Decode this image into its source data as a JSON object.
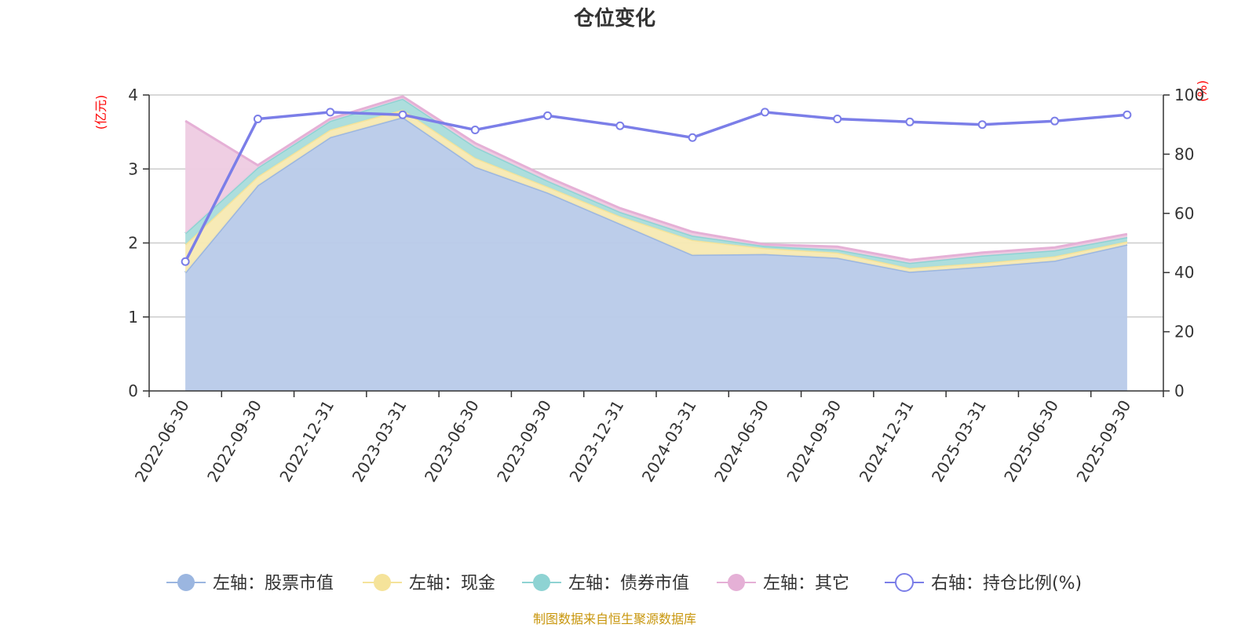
{
  "chart_data": {
    "type": "area",
    "title": "仓位变化",
    "left_axis_unit": "(亿元)",
    "right_axis_unit": "(%)",
    "ylim_left": [
      0,
      4
    ],
    "yticks_left": [
      "0",
      "1",
      "2",
      "3",
      "4"
    ],
    "ylim_right": [
      0,
      100
    ],
    "yticks_right": [
      "0",
      "20",
      "40",
      "60",
      "80",
      "100"
    ],
    "categories": [
      "2022-06-30",
      "2022-09-30",
      "2022-12-31",
      "2023-03-31",
      "2023-06-30",
      "2023-09-30",
      "2023-12-31",
      "2024-03-31",
      "2024-06-30",
      "2024-09-30",
      "2024-12-31",
      "2025-03-31",
      "2025-06-30",
      "2025-09-30"
    ],
    "stacked": true,
    "series": [
      {
        "name": "左轴：股票市值",
        "axis": "left",
        "kind": "area",
        "color": "#9bb6e0",
        "fill": "#b8cae9",
        "values": [
          1.6,
          2.78,
          3.43,
          3.7,
          3.03,
          2.68,
          2.26,
          1.84,
          1.85,
          1.8,
          1.61,
          1.68,
          1.76,
          1.98
        ]
      },
      {
        "name": "左轴：现金",
        "axis": "left",
        "kind": "area",
        "color": "#f5e39a",
        "fill": "#f7e9b2",
        "values": [
          0.38,
          0.12,
          0.1,
          0.1,
          0.12,
          0.08,
          0.1,
          0.2,
          0.08,
          0.07,
          0.05,
          0.05,
          0.06,
          0.04
        ]
      },
      {
        "name": "左轴：债券市值",
        "axis": "left",
        "kind": "area",
        "color": "#8ed3d3",
        "fill": "#a9dcdb",
        "values": [
          0.15,
          0.12,
          0.12,
          0.15,
          0.15,
          0.08,
          0.06,
          0.06,
          0.03,
          0.04,
          0.07,
          0.1,
          0.08,
          0.06
        ]
      },
      {
        "name": "左轴：其它",
        "axis": "left",
        "kind": "area",
        "color": "#e5b0d6",
        "fill": "#eecbe2",
        "values": [
          1.52,
          0.03,
          0.03,
          0.03,
          0.05,
          0.05,
          0.05,
          0.05,
          0.02,
          0.04,
          0.04,
          0.04,
          0.04,
          0.04
        ]
      },
      {
        "name": "右轴：持仓比例(%)",
        "axis": "right",
        "kind": "line",
        "color": "#7b7ee8",
        "values": [
          43.7,
          91.9,
          94.2,
          93.3,
          88.2,
          93.0,
          89.6,
          85.6,
          94.2,
          91.9,
          90.9,
          90.0,
          91.2,
          93.3
        ]
      }
    ],
    "legend_position": "bottom",
    "grid": true,
    "source": "制图数据来自恒生聚源数据库"
  }
}
